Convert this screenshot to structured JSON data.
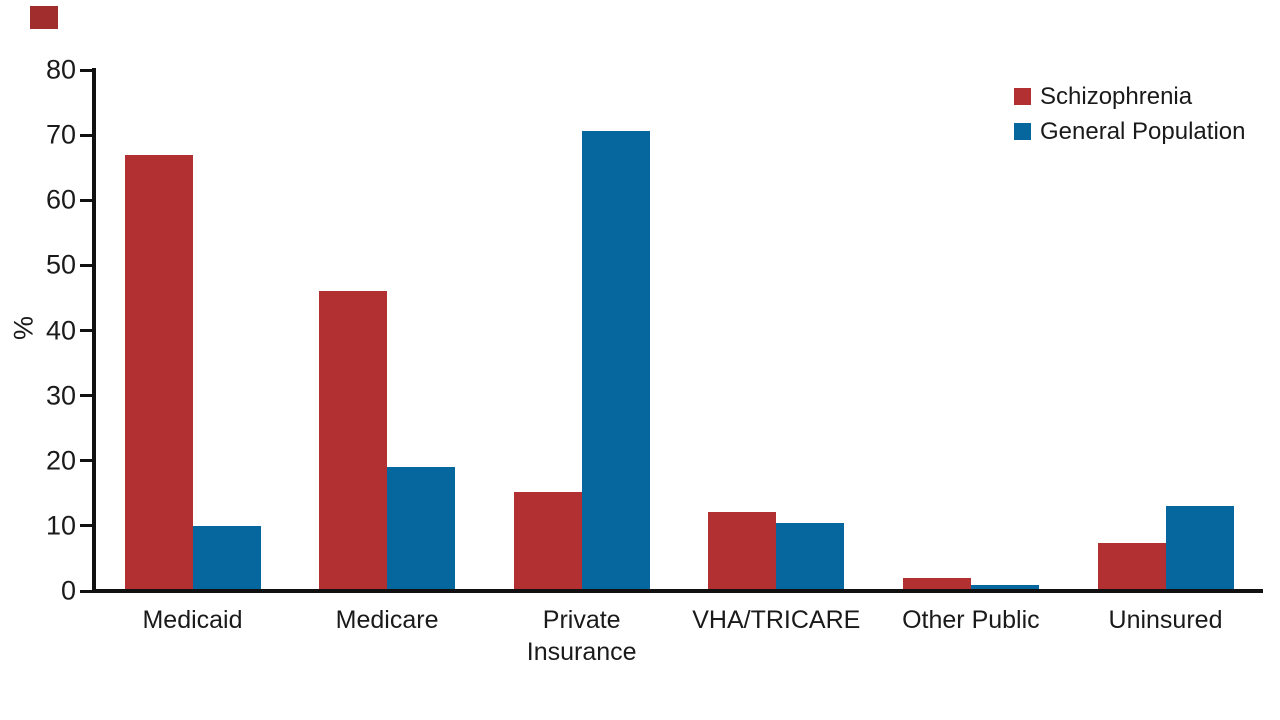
{
  "figure": {
    "background_color": "#ffffff",
    "text_color": "#1a1a1a",
    "corner_mark_color": "#a12d2d"
  },
  "chart_data": {
    "type": "bar",
    "title": "",
    "ylabel": "%",
    "xlabel": "",
    "ylim": [
      0,
      80
    ],
    "yticks": [
      0,
      10,
      20,
      30,
      40,
      50,
      60,
      70,
      80
    ],
    "grid": false,
    "legend_position": "top-right",
    "categories": [
      "Medicaid",
      "Medicare",
      "Private\nInsurance",
      "VHA/TRICARE",
      "Other Public",
      "Uninsured"
    ],
    "series": [
      {
        "name": "Schizophrenia",
        "color": "#b23032",
        "values": [
          67,
          46,
          15.2,
          12.2,
          2,
          7.4
        ]
      },
      {
        "name": "General Population",
        "color": "#06679e",
        "values": [
          10,
          19,
          70.7,
          10.4,
          0.9,
          13.1
        ]
      }
    ]
  }
}
